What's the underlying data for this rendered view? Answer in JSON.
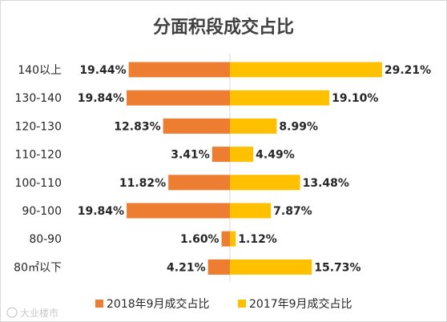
{
  "chart_data": {
    "type": "bar",
    "orientation": "horizontal",
    "layout": "diverging",
    "title": "分面积段成交占比",
    "categories": [
      "140以上",
      "130-140",
      "120-130",
      "110-120",
      "100-110",
      "90-100",
      "80-90",
      "80㎡以下"
    ],
    "series": [
      {
        "name": "2018年9月成交占比",
        "color": "#ED7D31",
        "direction": "left",
        "values": [
          19.44,
          19.84,
          12.83,
          3.41,
          11.82,
          19.84,
          1.6,
          4.21
        ],
        "labels": [
          "19.44%",
          "19.84%",
          "12.83%",
          "3.41%",
          "11.82%",
          "19.84%",
          "1.60%",
          "4.21%"
        ]
      },
      {
        "name": "2017年9月成交占比",
        "color": "#FFC000",
        "direction": "right",
        "values": [
          29.21,
          19.1,
          8.99,
          4.49,
          13.48,
          7.87,
          1.12,
          15.73
        ],
        "labels": [
          "29.21%",
          "19.10%",
          "8.99%",
          "4.49%",
          "13.48%",
          "7.87%",
          "1.12%",
          "15.73%"
        ]
      }
    ],
    "legend_position": "bottom",
    "grid": false
  },
  "watermark": {
    "text": "大业楼市",
    "color": "#c8c8c8"
  }
}
